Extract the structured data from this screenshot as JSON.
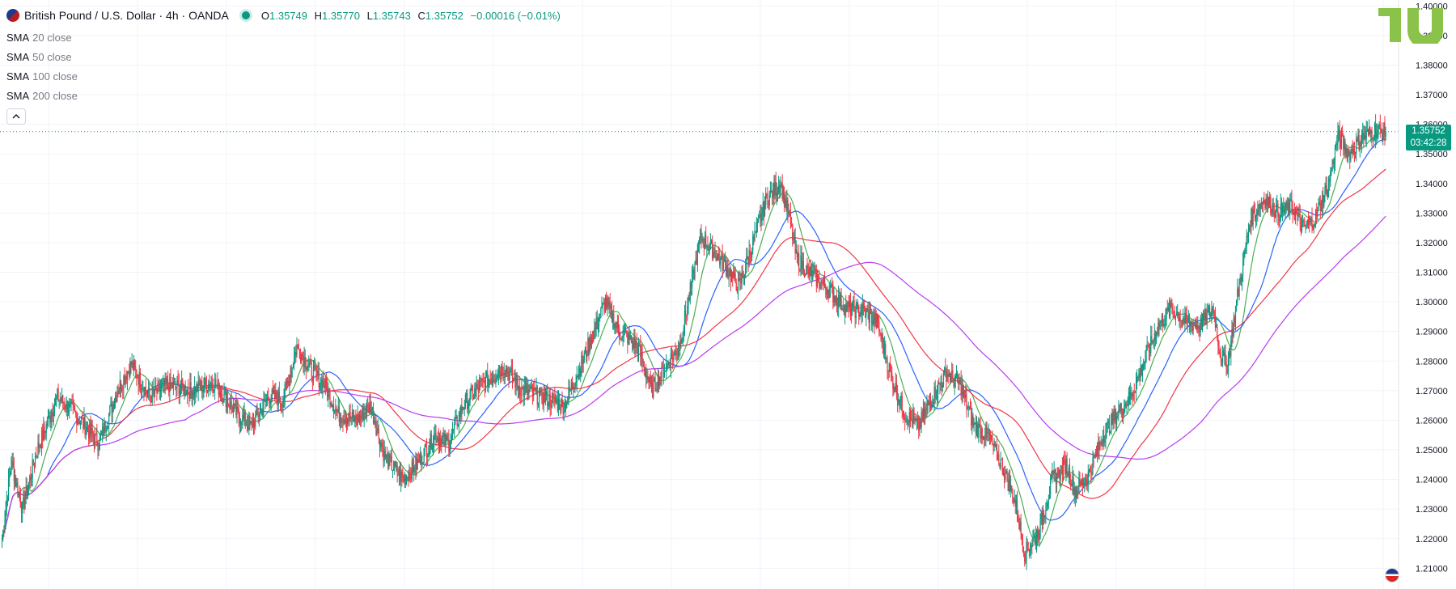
{
  "header": {
    "symbol": "British Pound / U.S. Dollar · 4h · OANDA",
    "ohlc": [
      {
        "key": "O",
        "value": "1.35749"
      },
      {
        "key": "H",
        "value": "1.35770"
      },
      {
        "key": "L",
        "value": "1.35743"
      },
      {
        "key": "C",
        "value": "1.35752"
      }
    ],
    "change": "−0.00016 (−0.01%)"
  },
  "indicators": [
    {
      "name": "SMA",
      "param": "20 close",
      "color": "#4caf50"
    },
    {
      "name": "SMA",
      "param": "50 close",
      "color": "#2962ff"
    },
    {
      "name": "SMA",
      "param": "100 close",
      "color": "#f23645"
    },
    {
      "name": "SMA",
      "param": "200 close",
      "color": "#b83cf0"
    }
  ],
  "collapse_icon": "chevron-up-icon",
  "last_price": {
    "price": "1.35752",
    "countdown": "03:42:28",
    "value": 1.35752
  },
  "colors": {
    "up": "#089981",
    "down": "#f23645",
    "grid": "#f0f3fa",
    "accent": "#089981"
  },
  "brand_icon": "tradingview-logo-icon",
  "currency_icon": "us-flag-icon",
  "chart_data": {
    "type": "candlestick",
    "y_ticks": [
      "1.40000",
      "1.39000",
      "1.38000",
      "1.37000",
      "1.36000",
      "1.35000",
      "1.34000",
      "1.33000",
      "1.32000",
      "1.31000",
      "1.30000",
      "1.29000",
      "1.28000",
      "1.27000",
      "1.26000",
      "1.25000",
      "1.24000",
      "1.23000",
      "1.22000",
      "1.21000"
    ],
    "ylim": [
      1.203,
      1.402
    ],
    "close_path": [
      [
        0,
        1.22
      ],
      [
        10,
        1.246
      ],
      [
        22,
        1.23
      ],
      [
        38,
        1.25
      ],
      [
        60,
        1.268
      ],
      [
        80,
        1.262
      ],
      [
        105,
        1.252
      ],
      [
        125,
        1.27
      ],
      [
        140,
        1.279
      ],
      [
        160,
        1.268
      ],
      [
        180,
        1.272
      ],
      [
        205,
        1.27
      ],
      [
        230,
        1.273
      ],
      [
        255,
        1.262
      ],
      [
        270,
        1.258
      ],
      [
        290,
        1.268
      ],
      [
        305,
        1.267
      ],
      [
        320,
        1.285
      ],
      [
        335,
        1.277
      ],
      [
        350,
        1.272
      ],
      [
        365,
        1.262
      ],
      [
        385,
        1.26
      ],
      [
        400,
        1.265
      ],
      [
        415,
        1.248
      ],
      [
        435,
        1.24
      ],
      [
        450,
        1.245
      ],
      [
        470,
        1.255
      ],
      [
        485,
        1.252
      ],
      [
        500,
        1.265
      ],
      [
        520,
        1.272
      ],
      [
        545,
        1.278
      ],
      [
        565,
        1.27
      ],
      [
        585,
        1.268
      ],
      [
        610,
        1.265
      ],
      [
        630,
        1.28
      ],
      [
        645,
        1.292
      ],
      [
        655,
        1.3
      ],
      [
        670,
        1.29
      ],
      [
        690,
        1.285
      ],
      [
        705,
        1.27
      ],
      [
        720,
        1.278
      ],
      [
        735,
        1.285
      ],
      [
        748,
        1.305
      ],
      [
        758,
        1.322
      ],
      [
        770,
        1.318
      ],
      [
        785,
        1.312
      ],
      [
        800,
        1.305
      ],
      [
        815,
        1.32
      ],
      [
        830,
        1.335
      ],
      [
        845,
        1.34
      ],
      [
        855,
        1.328
      ],
      [
        862,
        1.315
      ],
      [
        875,
        1.31
      ],
      [
        895,
        1.305
      ],
      [
        915,
        1.298
      ],
      [
        935,
        1.297
      ],
      [
        950,
        1.293
      ],
      [
        965,
        1.275
      ],
      [
        980,
        1.262
      ],
      [
        995,
        1.258
      ],
      [
        1010,
        1.268
      ],
      [
        1025,
        1.276
      ],
      [
        1040,
        1.272
      ],
      [
        1055,
        1.258
      ],
      [
        1070,
        1.255
      ],
      [
        1085,
        1.245
      ],
      [
        1100,
        1.232
      ],
      [
        1110,
        1.215
      ],
      [
        1125,
        1.222
      ],
      [
        1140,
        1.24
      ],
      [
        1155,
        1.245
      ],
      [
        1165,
        1.236
      ],
      [
        1180,
        1.242
      ],
      [
        1195,
        1.255
      ],
      [
        1210,
        1.262
      ],
      [
        1225,
        1.268
      ],
      [
        1240,
        1.28
      ],
      [
        1255,
        1.292
      ],
      [
        1270,
        1.298
      ],
      [
        1285,
        1.293
      ],
      [
        1300,
        1.292
      ],
      [
        1315,
        1.298
      ],
      [
        1322,
        1.283
      ],
      [
        1330,
        1.278
      ],
      [
        1340,
        1.3
      ],
      [
        1355,
        1.328
      ],
      [
        1370,
        1.335
      ],
      [
        1385,
        1.33
      ],
      [
        1400,
        1.332
      ],
      [
        1412,
        1.325
      ],
      [
        1425,
        1.328
      ],
      [
        1440,
        1.34
      ],
      [
        1450,
        1.356
      ],
      [
        1462,
        1.35
      ],
      [
        1475,
        1.355
      ],
      [
        1490,
        1.358
      ],
      [
        1502,
        1.35752
      ]
    ]
  }
}
